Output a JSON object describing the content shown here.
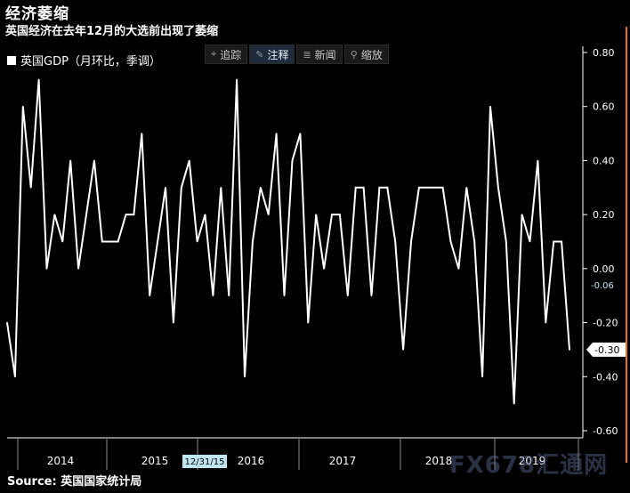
{
  "header": {
    "title": "经济萎缩",
    "subtitle": "英国经济在去年12月的大选前出现了萎缩"
  },
  "legend": {
    "label": "英国GDP（月环比，季调）"
  },
  "toolbar": {
    "buttons": [
      {
        "label": "追踪",
        "icon": "crosshair-icon",
        "glyph": "⌖",
        "active": false
      },
      {
        "label": "注释",
        "icon": "pencil-icon",
        "glyph": "✎",
        "active": true
      },
      {
        "label": "新闻",
        "icon": "news-icon",
        "glyph": "≣",
        "active": false
      },
      {
        "label": "缩放",
        "icon": "zoom-icon",
        "glyph": "⚲",
        "active": false
      }
    ]
  },
  "source": "Source: 英国国家统计局",
  "watermark": "FX678汇通网",
  "colors": {
    "background": "#000000",
    "line": "#ffffff",
    "axis": "#ffffff",
    "accent_bar": "#e8741a",
    "date_badge": "#bfe6f2",
    "last_badge": "#bfe6f2"
  },
  "chart_data": {
    "type": "line",
    "series": [
      {
        "name": "英国GDP（月环比，季调）",
        "values": [
          -0.2,
          -0.4,
          0.6,
          0.3,
          0.7,
          0.0,
          0.2,
          0.1,
          0.4,
          0.0,
          0.2,
          0.4,
          0.1,
          0.1,
          0.1,
          0.2,
          0.2,
          0.5,
          -0.1,
          0.1,
          0.3,
          -0.2,
          0.3,
          0.4,
          0.1,
          0.2,
          -0.1,
          0.3,
          -0.1,
          0.7,
          -0.4,
          0.1,
          0.3,
          0.2,
          0.5,
          -0.1,
          0.4,
          0.5,
          -0.2,
          0.2,
          0.0,
          0.2,
          0.2,
          -0.1,
          0.3,
          0.3,
          -0.1,
          0.3,
          0.3,
          0.1,
          -0.3,
          0.1,
          0.3,
          0.3,
          0.3,
          0.3,
          0.1,
          0.0,
          0.3,
          0.1,
          -0.4,
          0.6,
          0.3,
          0.1,
          -0.5,
          0.2,
          0.1,
          0.4,
          -0.2,
          0.1,
          0.1,
          -0.3
        ]
      }
    ],
    "x_ticks": [
      "2014",
      "2015",
      "2016",
      "2017",
      "2018",
      "2019"
    ],
    "y_ticks": [
      "0.80",
      "0.60",
      "0.40",
      "0.20",
      "0.00",
      "-0.20",
      "-0.40",
      "-0.60"
    ],
    "ylim": [
      -0.6,
      0.8
    ],
    "date_badge": "12/31/15",
    "value_badges": [
      "-0.06",
      "-0.30"
    ],
    "grid": false
  }
}
